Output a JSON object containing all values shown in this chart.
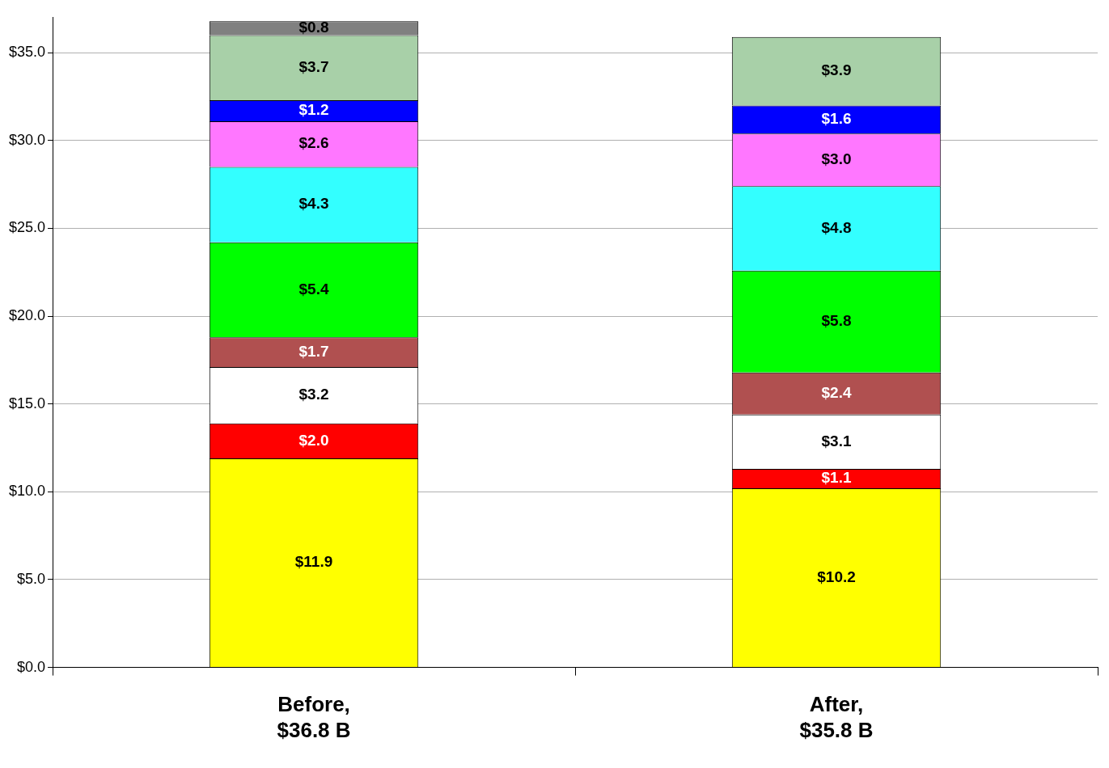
{
  "chart_data": {
    "type": "bar",
    "stacked": true,
    "categories": [
      "Before,\n$36.8 B",
      "After,\n$35.8 B"
    ],
    "series": [
      {
        "color": "#ffff00",
        "values": [
          11.9,
          10.2
        ],
        "value_labels": [
          "$11.9",
          "$10.2"
        ]
      },
      {
        "color": "#ff0000",
        "values": [
          2.0,
          1.1
        ],
        "value_labels": [
          "$2.0",
          "$1.1"
        ]
      },
      {
        "color": "#ffffff",
        "values": [
          3.2,
          3.1
        ],
        "value_labels": [
          "$3.2",
          "$3.1"
        ]
      },
      {
        "color": "#b05050",
        "values": [
          1.7,
          2.4
        ],
        "value_labels": [
          "$1.7",
          "$2.4"
        ]
      },
      {
        "color": "#00ff00",
        "values": [
          5.4,
          5.8
        ],
        "value_labels": [
          "$5.4",
          "$5.8"
        ]
      },
      {
        "color": "#33ffff",
        "values": [
          4.3,
          4.8
        ],
        "value_labels": [
          "$4.3",
          "$4.8"
        ]
      },
      {
        "color": "#ff77ff",
        "values": [
          2.6,
          3.0
        ],
        "value_labels": [
          "$2.6",
          "$3.0"
        ]
      },
      {
        "color": "#0000ff",
        "values": [
          1.2,
          1.6
        ],
        "value_labels": [
          "$1.2",
          "$1.6"
        ]
      },
      {
        "color": "#a8d0a8",
        "values": [
          3.7,
          3.9
        ],
        "value_labels": [
          "$3.7",
          "$3.9"
        ]
      },
      {
        "color": "#808080",
        "values": [
          0.8,
          null
        ],
        "value_labels": [
          "$0.8",
          null
        ]
      }
    ],
    "ylim": [
      0,
      37
    ],
    "yticks": [
      {
        "value": 0,
        "label": "$0.0"
      },
      {
        "value": 5,
        "label": "$5.0"
      },
      {
        "value": 10,
        "label": "$10.0"
      },
      {
        "value": 15,
        "label": "$15.0"
      },
      {
        "value": 20,
        "label": "$20.0"
      },
      {
        "value": 25,
        "label": "$25.0"
      },
      {
        "value": 30,
        "label": "$30.0"
      },
      {
        "value": 35,
        "label": "$35.0"
      }
    ],
    "grid": "y",
    "legend": false
  }
}
